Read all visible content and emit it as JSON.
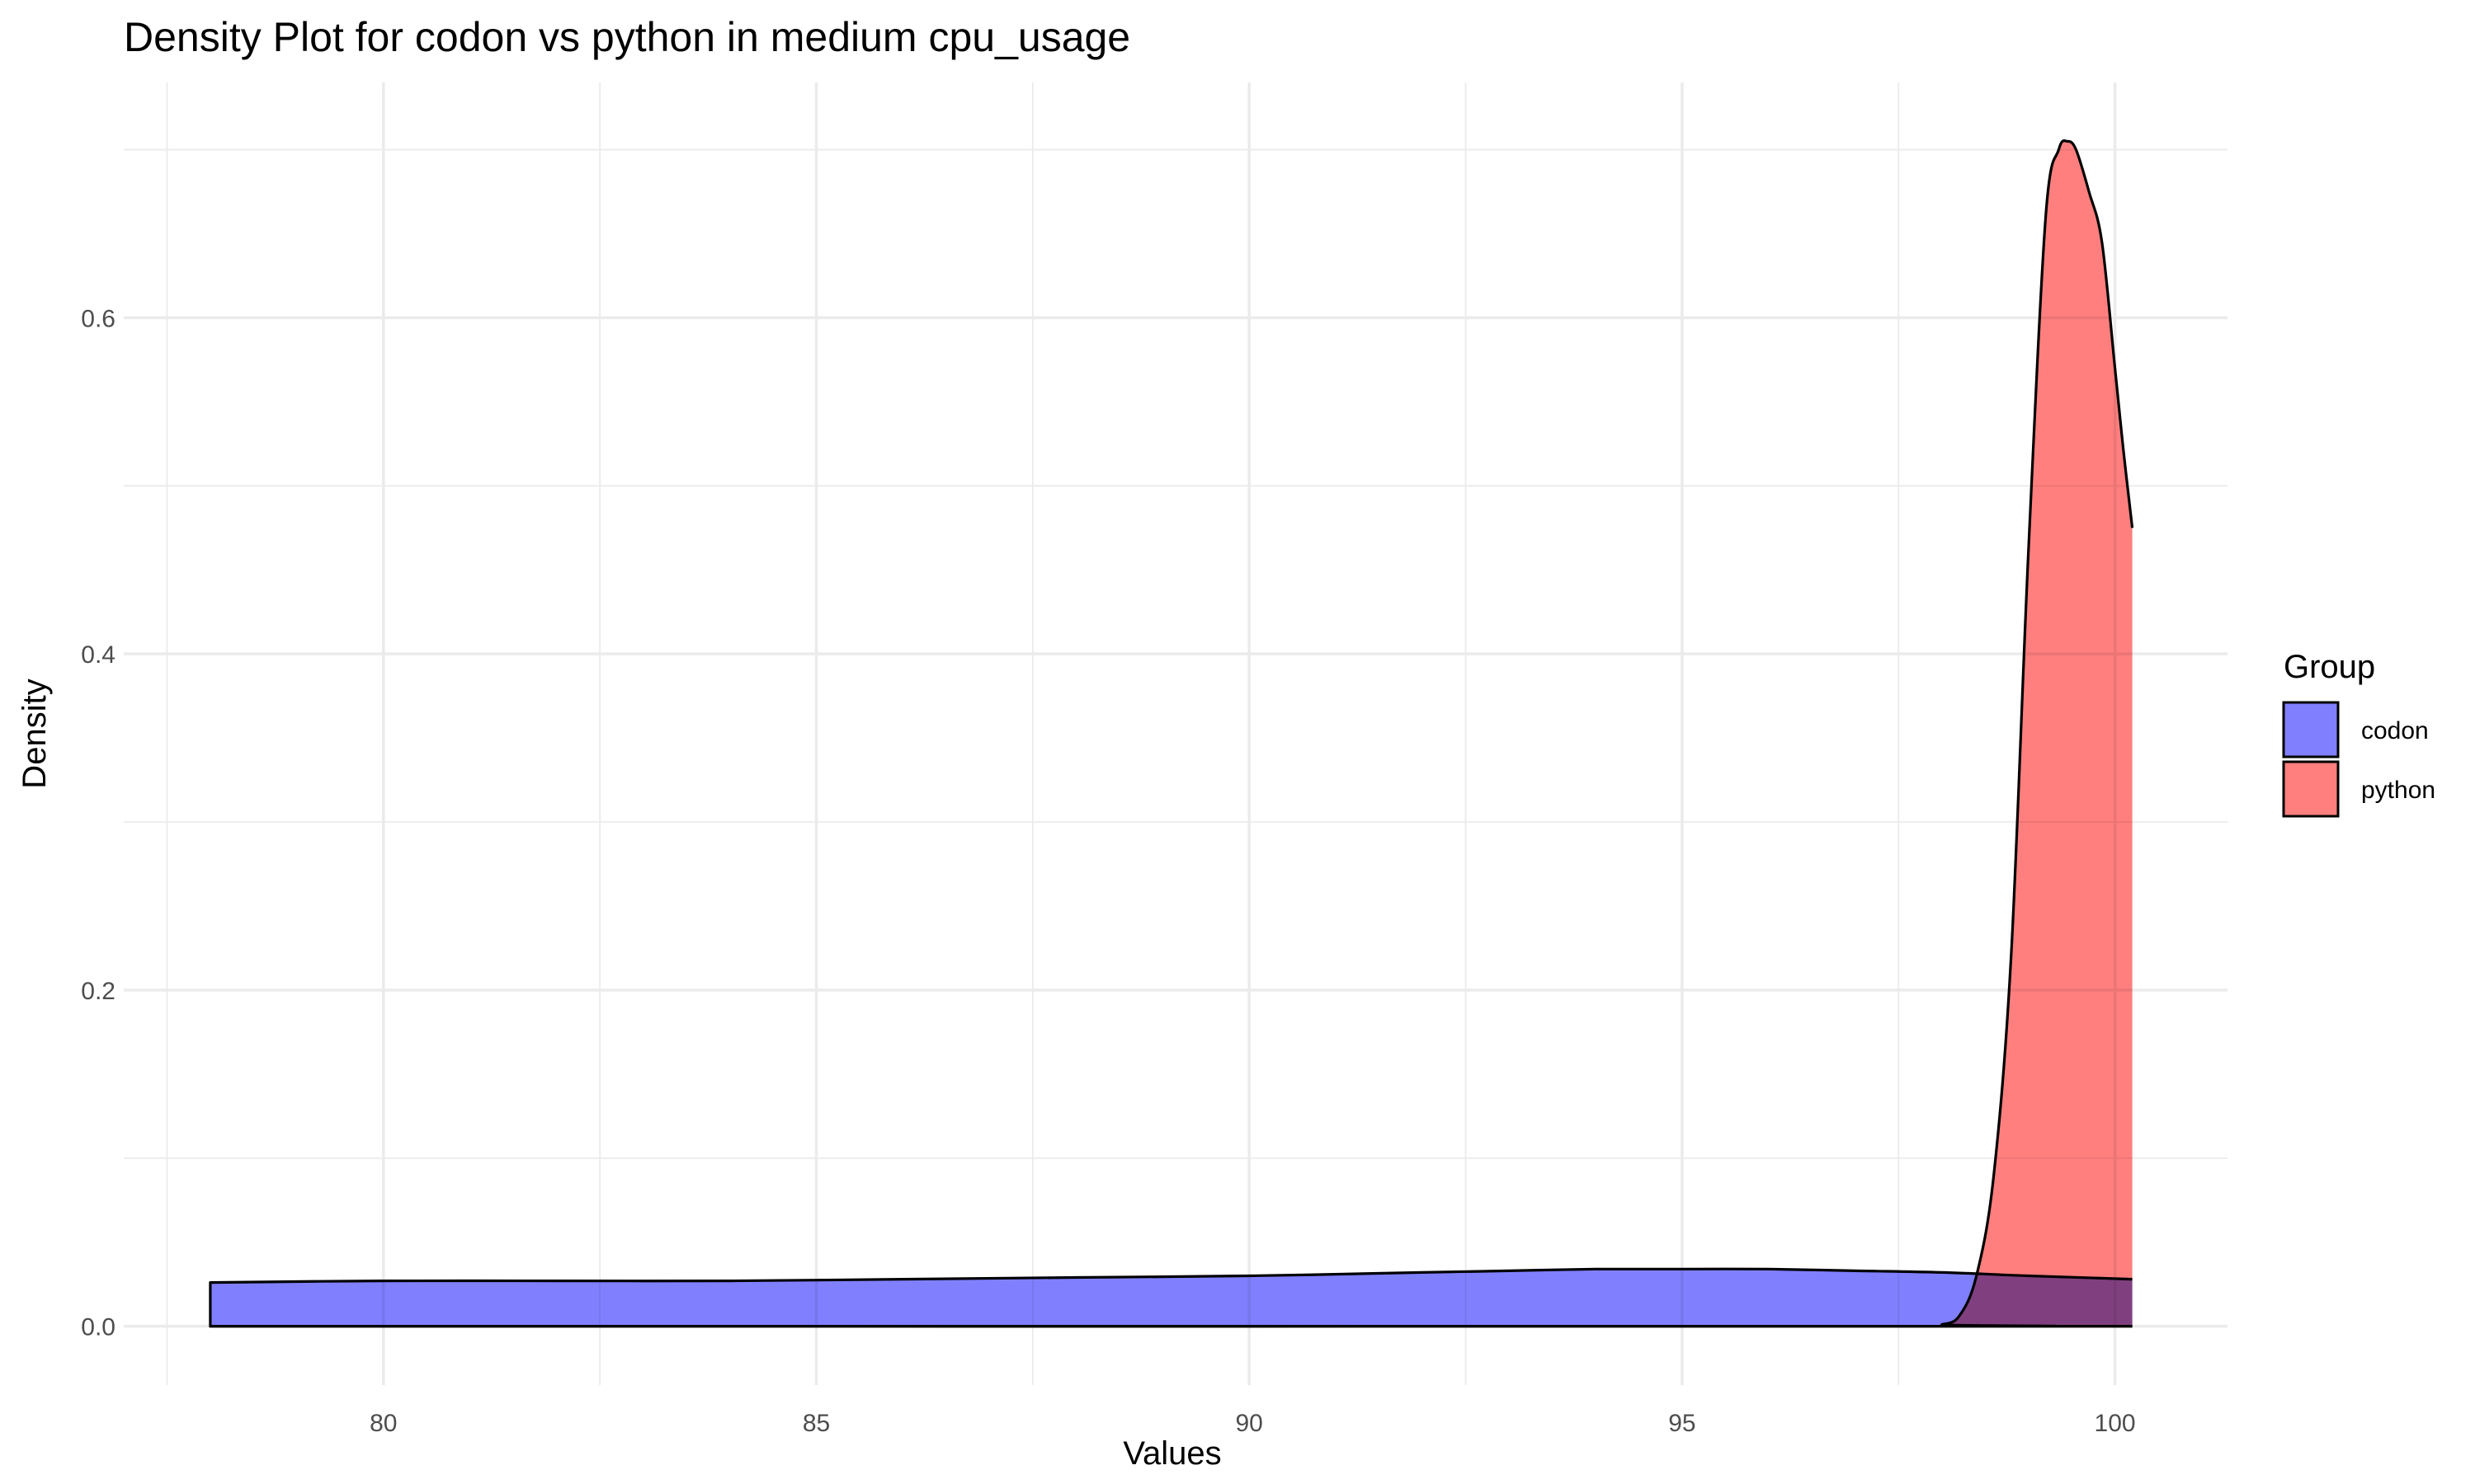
{
  "chart_data": {
    "type": "area",
    "title": "Density Plot for codon vs python in medium cpu_usage",
    "xlabel": "Values",
    "ylabel": "Density",
    "xlim": [
      77.0,
      101.3
    ],
    "ylim": [
      -0.035,
      0.74
    ],
    "x_ticks": [
      80,
      85,
      90,
      95,
      100
    ],
    "y_ticks": [
      0.0,
      0.2,
      0.4,
      0.6
    ],
    "x_tick_labels": [
      "80",
      "85",
      "90",
      "95",
      "100"
    ],
    "y_tick_labels": [
      "0.0",
      "0.2",
      "0.4",
      "0.6"
    ],
    "grid": true,
    "legend": {
      "title": "Group",
      "position": "right"
    },
    "series": [
      {
        "name": "codon",
        "fill": "#8080ff",
        "x": [
          78.0,
          80.0,
          82.0,
          84.0,
          86.0,
          88.0,
          90.0,
          92.0,
          93.0,
          94.0,
          95.0,
          96.0,
          97.0,
          98.0,
          99.0,
          100.2
        ],
        "y": [
          0.026,
          0.027,
          0.027,
          0.027,
          0.028,
          0.029,
          0.03,
          0.032,
          0.033,
          0.034,
          0.034,
          0.034,
          0.033,
          0.032,
          0.03,
          0.028
        ]
      },
      {
        "name": "python",
        "fill": "#ff7f7f",
        "x": [
          78.0,
          97.8,
          98.0,
          98.2,
          98.4,
          98.6,
          98.8,
          99.0,
          99.2,
          99.35,
          99.45,
          99.55,
          99.7,
          99.85,
          100.0,
          100.1,
          100.2
        ],
        "y": [
          0.0,
          0.0,
          0.001,
          0.006,
          0.03,
          0.09,
          0.22,
          0.46,
          0.66,
          0.7,
          0.705,
          0.7,
          0.675,
          0.645,
          0.57,
          0.52,
          0.475
        ]
      }
    ]
  }
}
